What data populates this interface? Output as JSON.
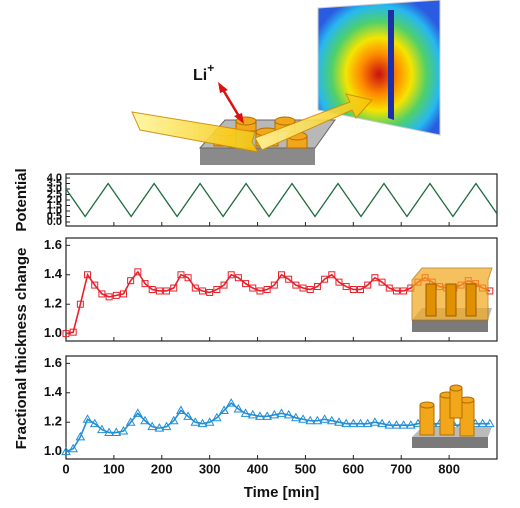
{
  "illustration": {
    "ion": "Li",
    "charge": "+"
  },
  "chart_data": [
    {
      "type": "line",
      "y_label": "Potential",
      "xlim": [
        0,
        900
      ],
      "ylim": [
        0,
        4.0
      ],
      "yticks": [
        {
          "value": 0,
          "label": "0.0"
        },
        0.5,
        {
          "value": 1,
          "label": "1.0"
        },
        1.5,
        {
          "value": 2,
          "label": "2.0"
        },
        2.5,
        {
          "value": 3,
          "label": "3.0"
        },
        3.5,
        {
          "value": 4,
          "label": "4.0"
        }
      ],
      "x": [
        0,
        40,
        88,
        136,
        184,
        232,
        280,
        328,
        376,
        424,
        472,
        520,
        568,
        616,
        664,
        712,
        760,
        808,
        856,
        900
      ],
      "series": [
        {
          "color": "#1e6b3c",
          "marker": "none",
          "values": [
            3.0,
            0.5,
            3.5,
            0.5,
            3.5,
            0.5,
            3.5,
            0.5,
            3.5,
            0.5,
            3.5,
            0.5,
            3.5,
            0.5,
            3.5,
            0.5,
            3.5,
            0.5,
            3.5,
            0.75
          ]
        }
      ]
    },
    {
      "type": "line",
      "y_label": "Fractional thickness change",
      "xlim": [
        0,
        900
      ],
      "ylim": [
        0.95,
        1.65
      ],
      "yticks": [
        {
          "value": 1,
          "label": "1.0"
        },
        {
          "value": 1.2,
          "label": "1.2"
        },
        {
          "value": 1.4,
          "label": "1.4"
        },
        {
          "value": 1.6,
          "label": "1.6"
        }
      ],
      "x": [
        0,
        15,
        30,
        45,
        60,
        75,
        90,
        105,
        120,
        135,
        150,
        165,
        180,
        195,
        210,
        225,
        240,
        255,
        270,
        285,
        300,
        315,
        330,
        345,
        360,
        375,
        390,
        405,
        420,
        435,
        450,
        465,
        480,
        495,
        510,
        525,
        540,
        555,
        570,
        585,
        600,
        615,
        630,
        645,
        660,
        675,
        690,
        705,
        720,
        735,
        750,
        765,
        780,
        795,
        810,
        825,
        840,
        855,
        870,
        885
      ],
      "series": [
        {
          "color": "#e8202a",
          "marker": "square",
          "values": [
            1.0,
            1.01,
            1.2,
            1.4,
            1.33,
            1.27,
            1.25,
            1.26,
            1.27,
            1.36,
            1.42,
            1.34,
            1.3,
            1.29,
            1.29,
            1.31,
            1.4,
            1.38,
            1.31,
            1.29,
            1.28,
            1.3,
            1.33,
            1.4,
            1.38,
            1.34,
            1.31,
            1.29,
            1.3,
            1.33,
            1.4,
            1.37,
            1.33,
            1.31,
            1.3,
            1.32,
            1.37,
            1.4,
            1.35,
            1.32,
            1.3,
            1.3,
            1.33,
            1.38,
            1.35,
            1.31,
            1.29,
            1.29,
            1.31,
            1.35,
            1.38,
            1.35,
            1.32,
            1.31,
            1.31,
            1.33,
            1.36,
            1.34,
            1.31,
            1.29
          ]
        }
      ]
    },
    {
      "type": "line",
      "x_label": "Time [min]",
      "xlim": [
        0,
        900
      ],
      "ylim": [
        0.95,
        1.65
      ],
      "xticks": [
        0,
        100,
        200,
        300,
        400,
        500,
        600,
        700,
        800
      ],
      "yticks": [
        {
          "value": 1,
          "label": "1.0"
        },
        {
          "value": 1.2,
          "label": "1.2"
        },
        {
          "value": 1.4,
          "label": "1.4"
        },
        {
          "value": 1.6,
          "label": "1.6"
        }
      ],
      "x": [
        0,
        15,
        30,
        45,
        60,
        75,
        90,
        105,
        120,
        135,
        150,
        165,
        180,
        195,
        210,
        225,
        240,
        255,
        270,
        285,
        300,
        315,
        330,
        345,
        360,
        375,
        390,
        405,
        420,
        435,
        450,
        465,
        480,
        495,
        510,
        525,
        540,
        555,
        570,
        585,
        600,
        615,
        630,
        645,
        660,
        675,
        690,
        705,
        720,
        735,
        750,
        765,
        780,
        795,
        810,
        825,
        840,
        855,
        870,
        885
      ],
      "series": [
        {
          "color": "#1f8fd6",
          "marker": "triangle",
          "values": [
            1.0,
            1.02,
            1.1,
            1.22,
            1.19,
            1.15,
            1.13,
            1.13,
            1.14,
            1.2,
            1.26,
            1.21,
            1.17,
            1.16,
            1.17,
            1.21,
            1.28,
            1.24,
            1.2,
            1.19,
            1.2,
            1.23,
            1.28,
            1.33,
            1.29,
            1.26,
            1.25,
            1.24,
            1.24,
            1.25,
            1.26,
            1.25,
            1.23,
            1.22,
            1.21,
            1.21,
            1.22,
            1.21,
            1.2,
            1.19,
            1.19,
            1.19,
            1.19,
            1.2,
            1.19,
            1.18,
            1.18,
            1.18,
            1.18,
            1.19,
            1.19,
            1.19,
            1.19,
            1.19,
            1.18,
            1.18,
            1.19,
            1.19,
            1.19,
            1.19
          ]
        }
      ]
    }
  ]
}
